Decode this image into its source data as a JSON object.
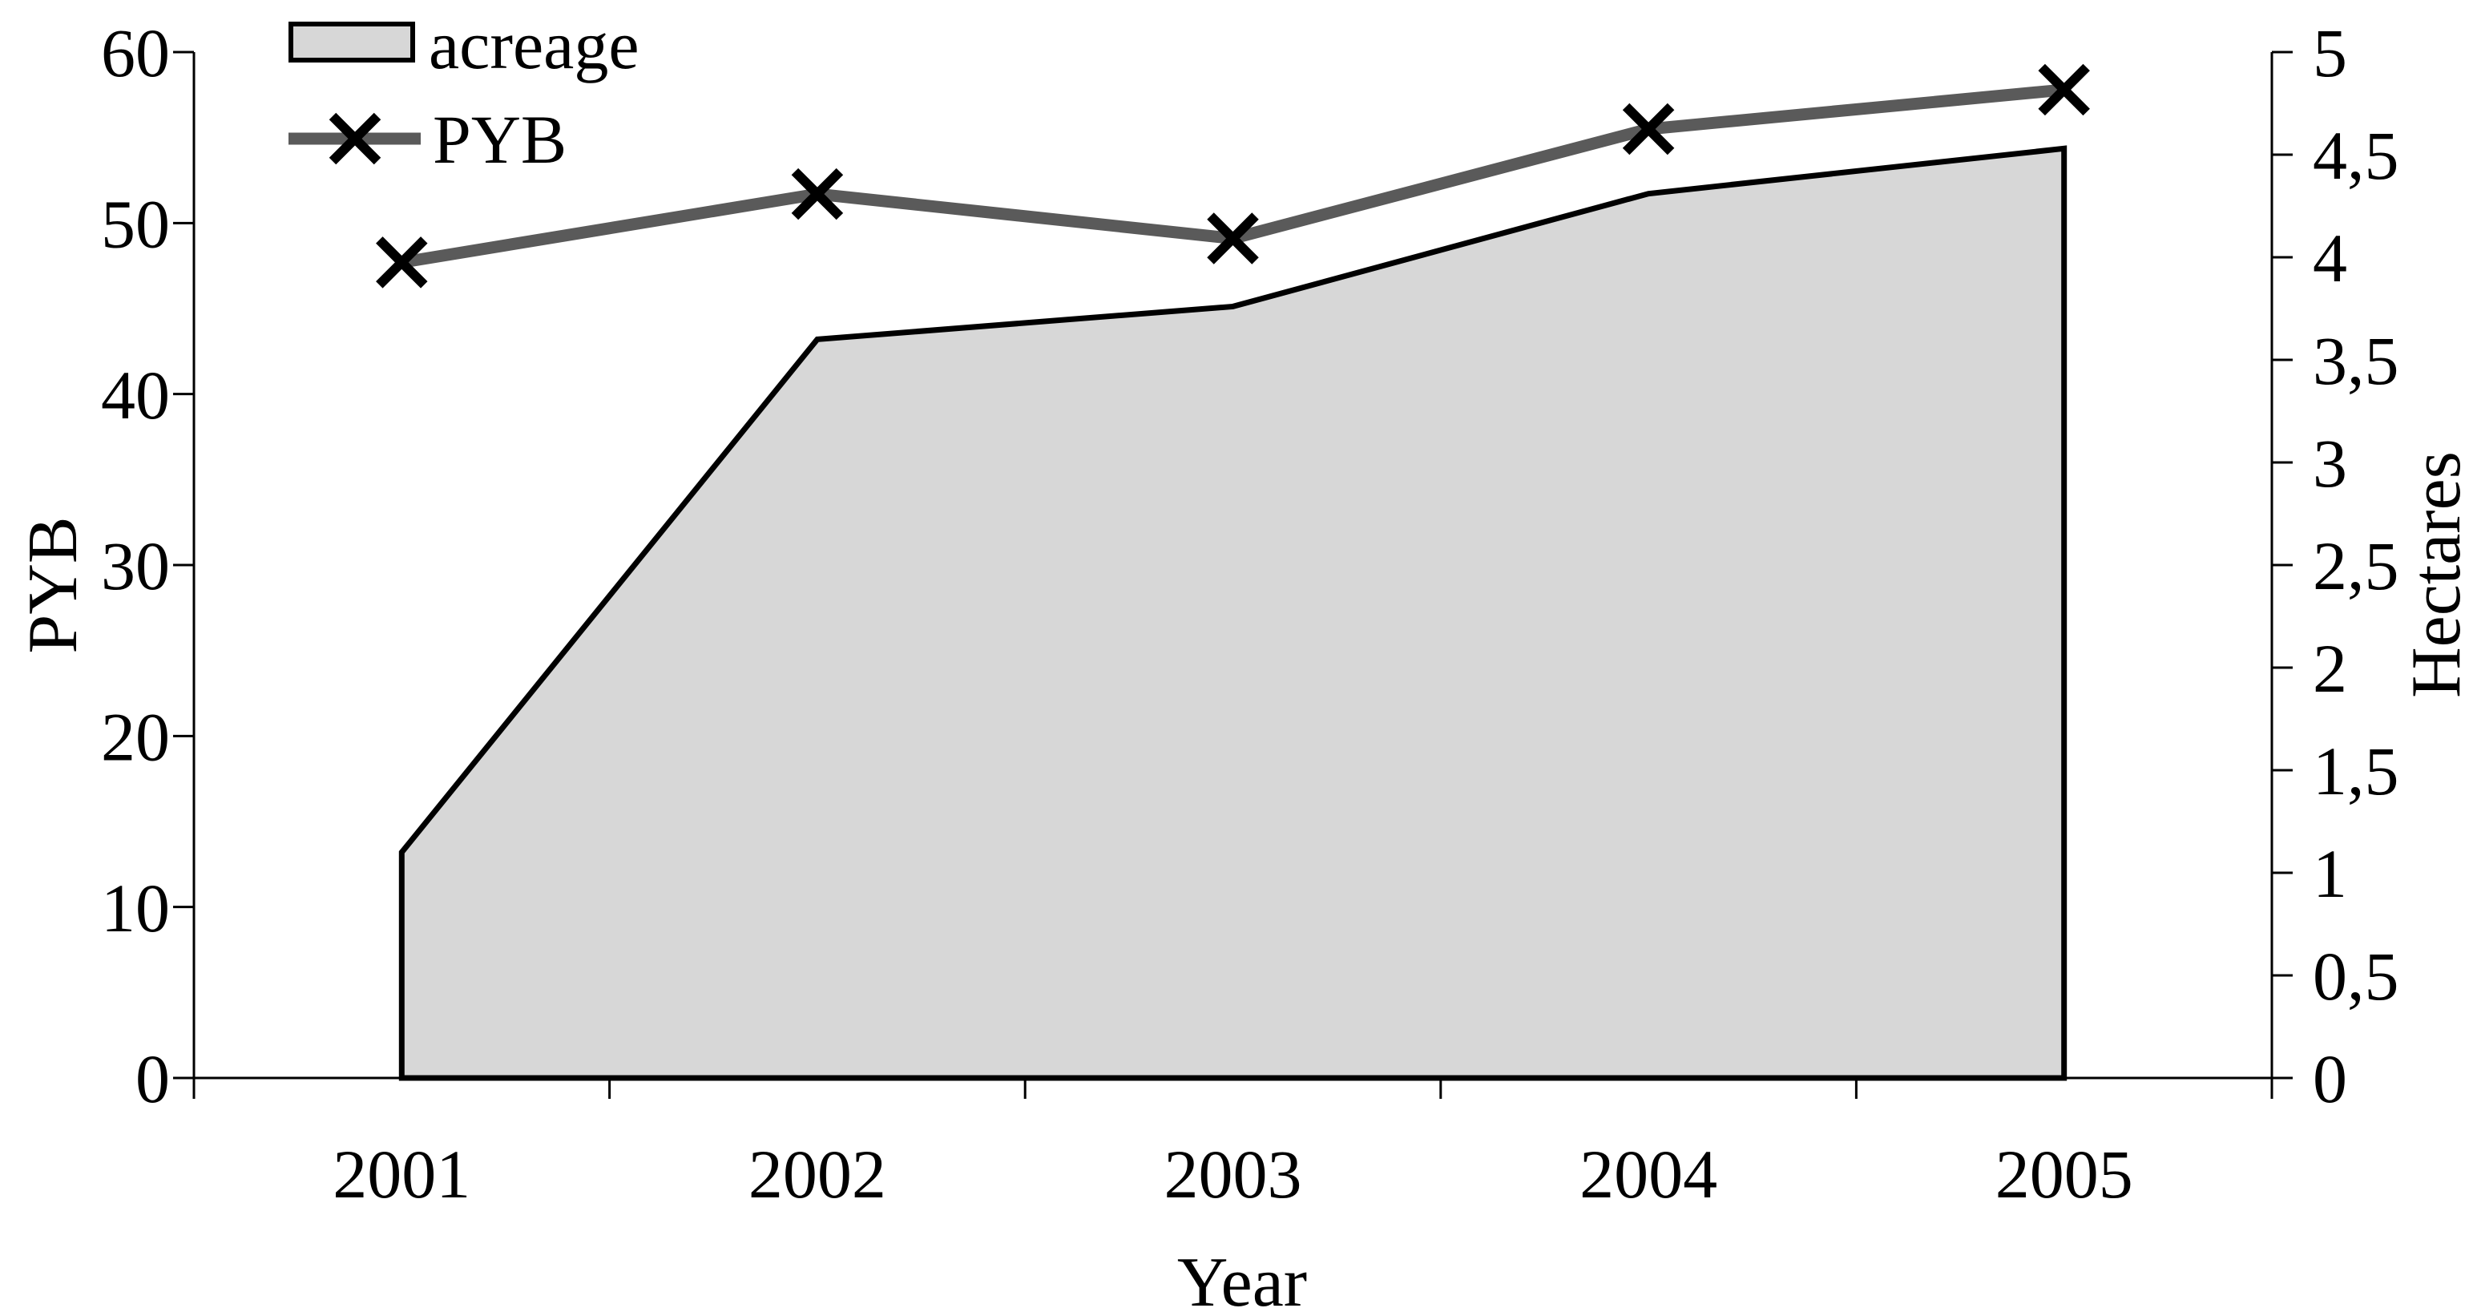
{
  "chart_data": {
    "type": "combo-area-line",
    "title": "",
    "categories": [
      "2001",
      "2002",
      "2003",
      "2004",
      "2005"
    ],
    "xlabel": "Year",
    "left_axis": {
      "title": "PYB",
      "min": 0,
      "max": 60,
      "step": 10,
      "tick_labels": [
        "0",
        "10",
        "20",
        "30",
        "40",
        "50",
        "60"
      ]
    },
    "right_axis": {
      "title": "Hectares",
      "min": 0,
      "max": 5,
      "step": 0.5,
      "tick_labels": [
        "0",
        "0,5",
        "1",
        "1,5",
        "2",
        "2,5",
        "3",
        "3,5",
        "4",
        "4,5",
        "5"
      ]
    },
    "series": [
      {
        "name": "acreage",
        "type": "area",
        "axis": "right",
        "unit": "Hectares",
        "values": [
          1.1,
          3.6,
          3.76,
          4.31,
          4.53
        ],
        "fill_color": "#d7d7d7",
        "edge_color": "#000000"
      },
      {
        "name": "PYB",
        "type": "line",
        "axis": "left",
        "marker": "x",
        "values": [
          47.7,
          51.7,
          49.1,
          55.5,
          57.8
        ],
        "line_color": "#5a5a5a",
        "marker_color": "#000000"
      }
    ],
    "legend": {
      "position": "top-left-inside",
      "items": [
        "acreage",
        "PYB"
      ]
    },
    "grid": false,
    "background": "#ffffff",
    "axis_color": "#000000"
  }
}
